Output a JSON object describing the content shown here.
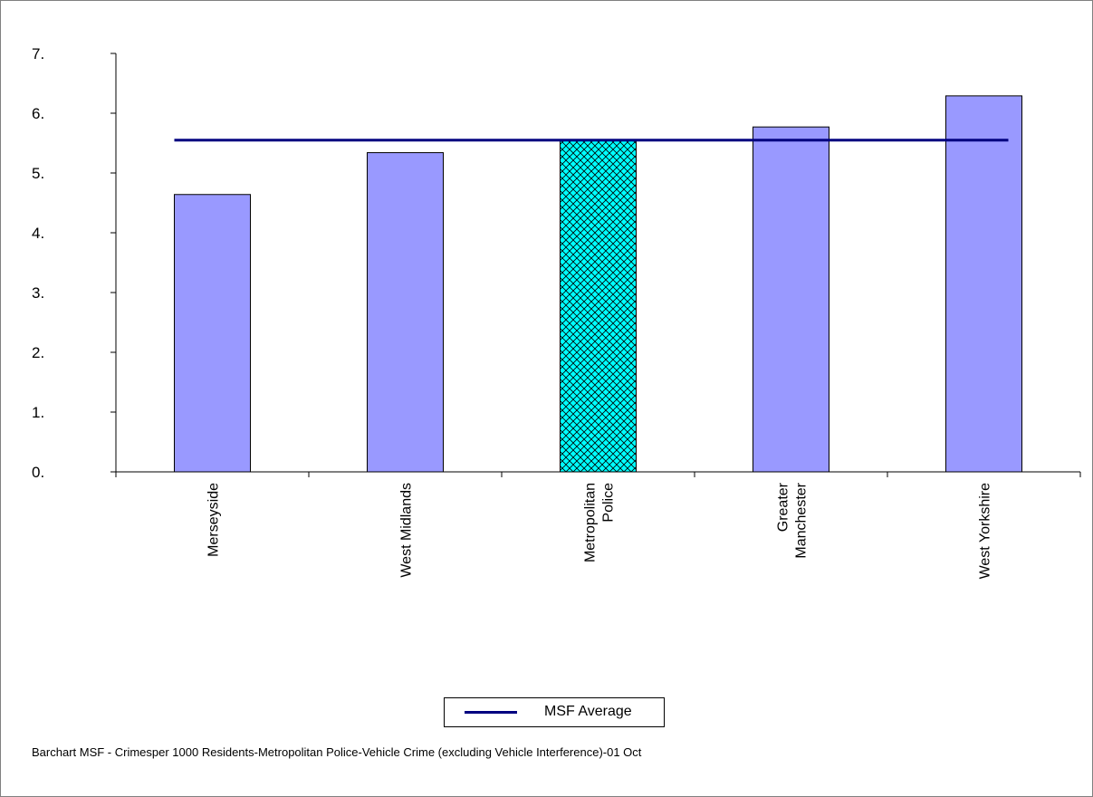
{
  "chart_data": {
    "type": "bar",
    "categories": [
      "Merseyside",
      "West Midlands",
      "Metropolitan Police",
      "Greater Manchester",
      "West Yorkshire"
    ],
    "category_lines": [
      [
        "Merseyside"
      ],
      [
        "West Midlands"
      ],
      [
        "Metropolitan",
        "Police"
      ],
      [
        "Greater",
        "Manchester"
      ],
      [
        "West Yorkshire"
      ]
    ],
    "values": [
      4.64,
      5.34,
      5.55,
      5.77,
      6.29
    ],
    "highlight_index": 2,
    "colors": {
      "bar": "#9999ff",
      "highlight": "#00ffff",
      "average_line": "#000080"
    },
    "average": {
      "name": "MSF Average",
      "value": 5.55
    },
    "ylim": [
      0,
      7
    ],
    "yticks": [
      0,
      1,
      2,
      3,
      4,
      5,
      6,
      7
    ],
    "ytick_labels": [
      "0.",
      "1.",
      "2.",
      "3.",
      "4.",
      "5.",
      "6.",
      "7."
    ],
    "grid": false,
    "legend_placement": "bottom-center",
    "caption": "Barchart MSF - Crimesper 1000 Residents-Metropolitan Police-Vehicle Crime (excluding Vehicle Interference)-01 Oct"
  }
}
